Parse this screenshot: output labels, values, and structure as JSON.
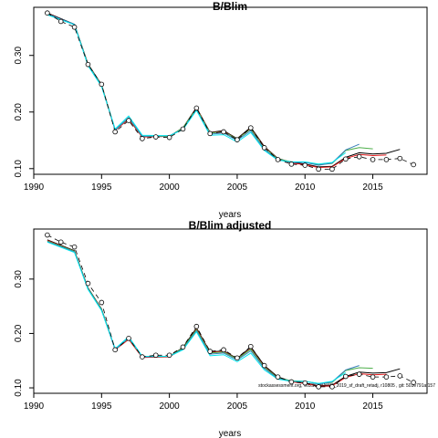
{
  "chart_data": [
    {
      "type": "line",
      "title": "B/Blim",
      "xlabel": "years",
      "ylabel": "",
      "xlim": [
        1990,
        2019
      ],
      "ylim": [
        0.09,
        0.385
      ],
      "xticks": [
        1990,
        1995,
        2000,
        2005,
        2010,
        2015
      ],
      "yticks": [
        0.1,
        0.2,
        0.3
      ],
      "ytick_labels": [
        "0.10",
        "0.20",
        "0.30"
      ],
      "points": {
        "name": "",
        "color": "#000000",
        "x": [
          1991,
          1992,
          1993,
          1994,
          1995,
          1996,
          1997,
          1998,
          1999,
          2000,
          2001,
          2002,
          2003,
          2004,
          2005,
          2006,
          2007,
          2008,
          2009,
          2010,
          2011,
          2012,
          2013,
          2014,
          2015,
          2016,
          2017,
          2018
        ],
        "y": [
          0.375,
          0.36,
          0.35,
          0.284,
          0.249,
          0.165,
          0.185,
          0.153,
          0.156,
          0.155,
          0.17,
          0.207,
          0.162,
          0.165,
          0.151,
          0.172,
          0.137,
          0.116,
          0.108,
          0.106,
          0.099,
          0.099,
          0.117,
          0.121,
          0.116,
          0.116,
          0.118,
          0.107
        ]
      },
      "series": [
        {
          "color": "#000000",
          "x": [
            1991,
            1993,
            1994,
            1995,
            1996,
            1997,
            1998,
            2000,
            2001,
            2002,
            2003,
            2004,
            2005,
            2006,
            2007,
            2008,
            2009,
            2010,
            2011,
            2012,
            2013,
            2014,
            2015,
            2016,
            2017
          ],
          "y": [
            0.375,
            0.355,
            0.285,
            0.248,
            0.168,
            0.188,
            0.156,
            0.157,
            0.172,
            0.208,
            0.164,
            0.167,
            0.153,
            0.173,
            0.139,
            0.118,
            0.111,
            0.108,
            0.103,
            0.104,
            0.12,
            0.128,
            0.126,
            0.127,
            0.134
          ]
        },
        {
          "color": "#e41a1c",
          "x": [
            1991,
            1993,
            1994,
            1995,
            1996,
            1997,
            1998,
            2000,
            2001,
            2002,
            2003,
            2004,
            2005,
            2006,
            2007,
            2008,
            2009,
            2010,
            2011,
            2012,
            2013,
            2014,
            2015,
            2016
          ],
          "y": [
            0.374,
            0.354,
            0.284,
            0.247,
            0.168,
            0.187,
            0.156,
            0.157,
            0.171,
            0.207,
            0.163,
            0.166,
            0.152,
            0.171,
            0.138,
            0.117,
            0.11,
            0.107,
            0.102,
            0.103,
            0.118,
            0.125,
            0.123,
            0.124
          ]
        },
        {
          "color": "#4daf4a",
          "x": [
            1991,
            1993,
            1994,
            1995,
            1996,
            1997,
            1998,
            2000,
            2001,
            2002,
            2003,
            2004,
            2005,
            2006,
            2007,
            2008,
            2009,
            2010,
            2011,
            2012,
            2013,
            2014,
            2015
          ],
          "y": [
            0.372,
            0.355,
            0.284,
            0.247,
            0.169,
            0.189,
            0.157,
            0.157,
            0.172,
            0.206,
            0.163,
            0.165,
            0.152,
            0.17,
            0.137,
            0.117,
            0.112,
            0.111,
            0.107,
            0.109,
            0.132,
            0.137,
            0.135
          ]
        },
        {
          "color": "#377eb8",
          "x": [
            1991,
            1993,
            1994,
            1995,
            1996,
            1997,
            1998,
            2000,
            2001,
            2002,
            2003,
            2004,
            2005,
            2006,
            2007,
            2008,
            2009,
            2010,
            2011,
            2012,
            2013,
            2014
          ],
          "y": [
            0.373,
            0.355,
            0.283,
            0.246,
            0.168,
            0.19,
            0.157,
            0.158,
            0.17,
            0.204,
            0.161,
            0.163,
            0.15,
            0.167,
            0.134,
            0.116,
            0.111,
            0.111,
            0.106,
            0.11,
            0.133,
            0.143
          ]
        },
        {
          "color": "#00e5ee",
          "x": [
            1991,
            1993,
            1994,
            1995,
            1996,
            1997,
            1998,
            2000,
            2001,
            2002,
            2003,
            2004,
            2005,
            2006,
            2007,
            2008,
            2009,
            2010,
            2011,
            2012,
            2013
          ],
          "y": [
            0.372,
            0.354,
            0.282,
            0.245,
            0.17,
            0.193,
            0.159,
            0.158,
            0.169,
            0.203,
            0.159,
            0.16,
            0.147,
            0.164,
            0.132,
            0.115,
            0.112,
            0.112,
            0.108,
            0.111,
            0.128
          ]
        }
      ]
    },
    {
      "type": "line",
      "title": "B/Blim adjusted",
      "xlabel": "years",
      "ylabel": "",
      "xlim": [
        1990,
        2019
      ],
      "ylim": [
        0.09,
        0.392
      ],
      "xticks": [
        1990,
        1995,
        2000,
        2005,
        2010,
        2015
      ],
      "yticks": [
        0.1,
        0.2,
        0.3
      ],
      "ytick_labels": [
        "0.10",
        "0.20",
        "0.30"
      ],
      "points": {
        "name": "",
        "color": "#000000",
        "x": [
          1991,
          1992,
          1993,
          1994,
          1995,
          1996,
          1997,
          1998,
          1999,
          2000,
          2001,
          2002,
          2003,
          2004,
          2005,
          2006,
          2007,
          2008,
          2009,
          2010,
          2011,
          2012,
          2013,
          2014,
          2015,
          2016,
          2017,
          2018
        ],
        "y": [
          0.381,
          0.368,
          0.359,
          0.292,
          0.257,
          0.17,
          0.191,
          0.157,
          0.16,
          0.16,
          0.175,
          0.213,
          0.167,
          0.17,
          0.155,
          0.176,
          0.141,
          0.12,
          0.111,
          0.109,
          0.102,
          0.102,
          0.121,
          0.125,
          0.12,
          0.12,
          0.122,
          0.11
        ]
      },
      "series": [
        {
          "color": "#000000",
          "x": [
            1991,
            1993,
            1994,
            1995,
            1996,
            1997,
            1998,
            2000,
            2001,
            2002,
            2003,
            2004,
            2005,
            2006,
            2007,
            2008,
            2009,
            2010,
            2011,
            2012,
            2013,
            2014,
            2015,
            2016,
            2017
          ],
          "y": [
            0.372,
            0.352,
            0.284,
            0.245,
            0.171,
            0.19,
            0.157,
            0.158,
            0.174,
            0.21,
            0.166,
            0.168,
            0.154,
            0.175,
            0.141,
            0.12,
            0.112,
            0.109,
            0.104,
            0.105,
            0.121,
            0.129,
            0.127,
            0.128,
            0.135
          ]
        },
        {
          "color": "#e41a1c",
          "x": [
            1991,
            1993,
            1994,
            1995,
            1996,
            1997,
            1998,
            2000,
            2001,
            2002,
            2003,
            2004,
            2005,
            2006,
            2007,
            2008,
            2009,
            2010,
            2011,
            2012,
            2013,
            2014,
            2015,
            2016
          ],
          "y": [
            0.371,
            0.351,
            0.283,
            0.244,
            0.17,
            0.189,
            0.156,
            0.157,
            0.172,
            0.208,
            0.165,
            0.167,
            0.153,
            0.172,
            0.139,
            0.118,
            0.111,
            0.108,
            0.103,
            0.104,
            0.119,
            0.126,
            0.124,
            0.125
          ]
        },
        {
          "color": "#4daf4a",
          "x": [
            1991,
            1993,
            1994,
            1995,
            1996,
            1997,
            1998,
            2000,
            2001,
            2002,
            2003,
            2004,
            2005,
            2006,
            2007,
            2008,
            2009,
            2010,
            2011,
            2012,
            2013,
            2014,
            2015
          ],
          "y": [
            0.37,
            0.351,
            0.283,
            0.244,
            0.171,
            0.191,
            0.157,
            0.158,
            0.173,
            0.207,
            0.164,
            0.166,
            0.153,
            0.171,
            0.138,
            0.118,
            0.113,
            0.112,
            0.108,
            0.11,
            0.132,
            0.137,
            0.136
          ]
        },
        {
          "color": "#377eb8",
          "x": [
            1991,
            1993,
            1994,
            1995,
            1996,
            1997,
            1998,
            2000,
            2001,
            2002,
            2003,
            2004,
            2005,
            2006,
            2007,
            2008,
            2009,
            2010,
            2011,
            2012,
            2013,
            2014
          ],
          "y": [
            0.369,
            0.35,
            0.282,
            0.243,
            0.17,
            0.192,
            0.157,
            0.158,
            0.171,
            0.205,
            0.162,
            0.164,
            0.151,
            0.168,
            0.136,
            0.117,
            0.112,
            0.112,
            0.107,
            0.111,
            0.133,
            0.141
          ]
        },
        {
          "color": "#00e5ee",
          "x": [
            1991,
            1993,
            1994,
            1995,
            1996,
            1997,
            1998,
            2000,
            2001,
            2002,
            2003,
            2004,
            2005,
            2006,
            2007,
            2008,
            2009,
            2010,
            2011,
            2012,
            2013
          ],
          "y": [
            0.368,
            0.349,
            0.281,
            0.242,
            0.172,
            0.194,
            0.158,
            0.158,
            0.17,
            0.203,
            0.159,
            0.161,
            0.148,
            0.164,
            0.133,
            0.116,
            0.112,
            0.112,
            0.108,
            0.112,
            0.128
          ]
        }
      ],
      "footnote": "stockassessment.org, WBSS_HAWG_2019_sf_draft_retadj, r10805 , git: 503e791af157"
    }
  ]
}
